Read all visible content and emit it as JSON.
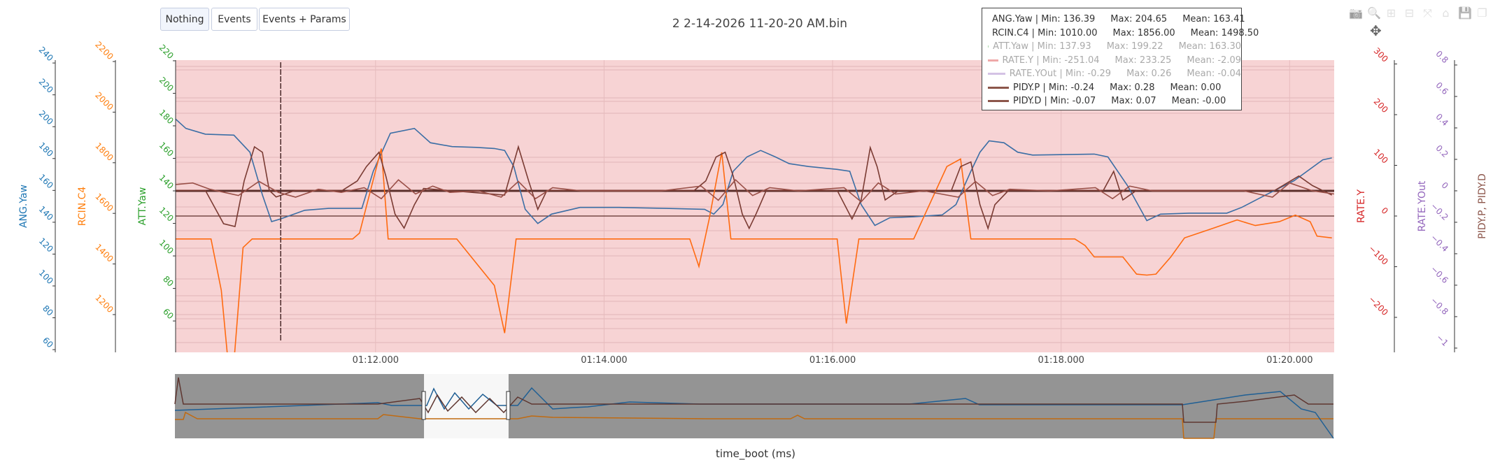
{
  "title": "2 2-14-2026 11-20-20 AM.bin",
  "buttons": [
    {
      "label": "Nothing",
      "active": true
    },
    {
      "label": "Events",
      "active": false
    },
    {
      "label": "Events + Params",
      "active": false
    }
  ],
  "modebar": {
    "icons": [
      "camera-icon",
      "zoom-icon",
      "zoom-in-icon",
      "zoom-out-icon",
      "autoscale-icon",
      "home-icon",
      "save-icon",
      "copy-icon"
    ],
    "glyphs": [
      "📷",
      "🔍",
      "⊞",
      "⊟",
      "⤧",
      "⌂",
      "💾",
      "❐"
    ],
    "pan_glyph": "✥"
  },
  "legend": [
    {
      "name": "ANG.Yaw | Min: 136.39",
      "max": "Max: 204.65",
      "mean": "Mean: 163.41",
      "color": "#1f77b4",
      "visible": true
    },
    {
      "name": "RCIN.C4 | Min: 1010.00",
      "max": "Max: 1856.00",
      "mean": "Mean: 1498.50",
      "color": "#ff7f0e",
      "visible": true
    },
    {
      "name": "ATT.Yaw | Min: 137.93",
      "max": "Max: 199.22",
      "mean": "Mean: 163.30",
      "color": "#2ca02c",
      "visible": false
    },
    {
      "name": "RATE.Y | Min: -251.04",
      "max": "Max: 233.25",
      "mean": "Mean: -2.09",
      "color": "#d62728",
      "visible": false
    },
    {
      "name": "RATE.YOut | Min: -0.29",
      "max": "Max: 0.26",
      "mean": "Mean: -0.04",
      "color": "#9467bd",
      "visible": false
    },
    {
      "name": "PIDY.P | Min: -0.24",
      "max": "Max: 0.28",
      "mean": "Mean: 0.00",
      "color": "#8c564b",
      "visible": true
    },
    {
      "name": "PIDY.D | Min: -0.07",
      "max": "Max: 0.07",
      "mean": "Mean: -0.00",
      "color": "#8c564b",
      "visible": true
    }
  ],
  "chart_data": {
    "type": "line",
    "title": "2 2-14-2026 11-20-20 AM.bin",
    "xlabel": "time_boot (ms)",
    "xlim": [
      70.25,
      80.39
    ],
    "xticks": [
      {
        "t": 72,
        "label": "01:12.000"
      },
      {
        "t": 74,
        "label": "01:14.000"
      },
      {
        "t": 76,
        "label": "01:16.000"
      },
      {
        "t": 78,
        "label": "01:18.000"
      },
      {
        "t": 80,
        "label": "01:20.000"
      }
    ],
    "axes": {
      "ang": {
        "title": "ANG.Yaw",
        "color": "#1f77b4",
        "side": "left",
        "range": [
          58.3,
          241.8
        ],
        "ticks": [
          60,
          80,
          100,
          120,
          140,
          160,
          180,
          200,
          220,
          240
        ],
        "tickColor": "#1f77b4"
      },
      "rcin": {
        "title": "RCIN.C4",
        "color": "#ff7f0e",
        "side": "left",
        "range": [
          1050.8,
          2205.5
        ],
        "ticks": [
          1200,
          1400,
          1600,
          1800,
          2000,
          2200
        ],
        "tickColor": "#ff7f0e"
      },
      "att": {
        "title": "ATT.Yaw",
        "color": "#2ca02c",
        "side": "left",
        "range": [
          40.7,
          220.4
        ],
        "ticks": [
          60,
          80,
          100,
          120,
          140,
          160,
          180,
          200,
          220
        ],
        "tickColor": "#2ca02c"
      },
      "ratey": {
        "title": "RATE.Y",
        "color": "#d62728",
        "side": "right",
        "range": [
          -269,
          307.6
        ],
        "ticks": [
          -200,
          -100,
          0,
          100,
          200,
          300
        ],
        "tickColor": "#d62728"
      },
      "yout": {
        "title": "RATE.YOut",
        "color": "#9467bd",
        "side": "right",
        "range": [
          -1.027,
          0.831
        ],
        "ticks": [
          -1,
          -0.8,
          -0.6,
          -0.4,
          -0.2,
          0,
          0.2,
          0.4,
          0.6,
          0.8
        ],
        "tickColor": "#9467bd"
      },
      "pidy": {
        "title": "PIDY.P, PIDY.D",
        "color": "#8c564b",
        "side": "right-title",
        "range": [
          -1.027,
          0.831
        ],
        "ticks": [],
        "tickColor": "#8c564b"
      }
    },
    "series": [
      {
        "name": "ANG.Yaw",
        "axis": "ang",
        "color": "#3b6ea5",
        "points": [
          [
            70.25,
            204.8
          ],
          [
            70.34,
            198.9
          ],
          [
            70.51,
            195.3
          ],
          [
            70.76,
            194.7
          ],
          [
            70.9,
            184
          ],
          [
            71.01,
            157.1
          ],
          [
            71.09,
            140.4
          ],
          [
            71.17,
            142.1
          ],
          [
            71.38,
            147.5
          ],
          [
            71.59,
            148.7
          ],
          [
            71.88,
            148.7
          ],
          [
            71.98,
            172
          ],
          [
            72.13,
            195.9
          ],
          [
            72.34,
            198.9
          ],
          [
            72.48,
            189.9
          ],
          [
            72.67,
            187.5
          ],
          [
            72.88,
            187
          ],
          [
            73.04,
            186.3
          ],
          [
            73.13,
            185.1
          ],
          [
            73.21,
            175
          ],
          [
            73.31,
            148.1
          ],
          [
            73.42,
            139.2
          ],
          [
            73.54,
            145.1
          ],
          [
            73.79,
            149.3
          ],
          [
            74.13,
            149.3
          ],
          [
            74.54,
            148.7
          ],
          [
            74.88,
            148.1
          ],
          [
            74.96,
            145.1
          ],
          [
            75.04,
            151.1
          ],
          [
            75.13,
            172
          ],
          [
            75.25,
            181
          ],
          [
            75.37,
            185.1
          ],
          [
            75.5,
            181
          ],
          [
            75.62,
            176.8
          ],
          [
            75.79,
            175
          ],
          [
            76.04,
            173.2
          ],
          [
            76.15,
            172
          ],
          [
            76.25,
            151.1
          ],
          [
            76.37,
            138
          ],
          [
            76.5,
            142.8
          ],
          [
            76.71,
            143.4
          ],
          [
            76.96,
            144.6
          ],
          [
            77.08,
            151.1
          ],
          [
            77.21,
            172
          ],
          [
            77.29,
            184
          ],
          [
            77.37,
            191.1
          ],
          [
            77.5,
            189.9
          ],
          [
            77.62,
            184
          ],
          [
            77.75,
            182.2
          ],
          [
            78.29,
            182.8
          ],
          [
            78.41,
            181
          ],
          [
            78.58,
            163.1
          ],
          [
            78.75,
            141
          ],
          [
            78.87,
            145.1
          ],
          [
            79.12,
            145.7
          ],
          [
            79.45,
            145.7
          ],
          [
            79.58,
            149.3
          ],
          [
            79.79,
            157.1
          ],
          [
            80.04,
            166.1
          ],
          [
            80.29,
            179.2
          ],
          [
            80.37,
            180.4
          ]
        ]
      },
      {
        "name": "RCIN.C4",
        "axis": "rcin",
        "color": "#ff6a10",
        "points": [
          [
            70.25,
            1499
          ],
          [
            70.56,
            1499
          ],
          [
            70.65,
            1296
          ],
          [
            70.71,
            1010
          ],
          [
            70.76,
            1010
          ],
          [
            70.84,
            1465
          ],
          [
            70.92,
            1499
          ],
          [
            71.8,
            1499
          ],
          [
            71.86,
            1522
          ],
          [
            72.05,
            1856
          ],
          [
            72.11,
            1499
          ],
          [
            72.34,
            1499
          ],
          [
            72.71,
            1499
          ],
          [
            73.04,
            1315
          ],
          [
            73.13,
            1127
          ],
          [
            73.23,
            1499
          ],
          [
            74.54,
            1499
          ],
          [
            74.75,
            1499
          ],
          [
            74.83,
            1390
          ],
          [
            74.92,
            1578
          ],
          [
            75.03,
            1841
          ],
          [
            75.11,
            1499
          ],
          [
            76.04,
            1499
          ],
          [
            76.12,
            1165
          ],
          [
            76.23,
            1499
          ],
          [
            76.71,
            1499
          ],
          [
            77.0,
            1785
          ],
          [
            77.12,
            1815
          ],
          [
            77.21,
            1499
          ],
          [
            78.12,
            1499
          ],
          [
            78.21,
            1473
          ],
          [
            78.29,
            1428
          ],
          [
            78.54,
            1428
          ],
          [
            78.66,
            1360
          ],
          [
            78.75,
            1356
          ],
          [
            78.83,
            1360
          ],
          [
            78.96,
            1428
          ],
          [
            79.08,
            1503
          ],
          [
            79.33,
            1541
          ],
          [
            79.54,
            1574
          ],
          [
            79.7,
            1552
          ],
          [
            79.91,
            1567
          ],
          [
            80.05,
            1593
          ],
          [
            80.18,
            1567
          ],
          [
            80.24,
            1510
          ],
          [
            80.37,
            1503
          ]
        ]
      },
      {
        "name": "PIDY.P",
        "axis": "pidy",
        "color": "#7a3b33",
        "points": [
          [
            70.25,
            0.003
          ],
          [
            70.51,
            0.003
          ],
          [
            70.67,
            -0.209
          ],
          [
            70.77,
            -0.227
          ],
          [
            70.85,
            0.063
          ],
          [
            70.94,
            0.28
          ],
          [
            71.01,
            0.245
          ],
          [
            71.07,
            0.003
          ],
          [
            71.13,
            -0.039
          ],
          [
            71.3,
            0.003
          ],
          [
            71.71,
            0.003
          ],
          [
            71.84,
            0.063
          ],
          [
            71.92,
            0.154
          ],
          [
            72.03,
            0.245
          ],
          [
            72.09,
            0.094
          ],
          [
            72.17,
            -0.148
          ],
          [
            72.25,
            -0.237
          ],
          [
            72.34,
            -0.088
          ],
          [
            72.42,
            0.015
          ],
          [
            72.63,
            0.003
          ],
          [
            73.13,
            -0.027
          ],
          [
            73.25,
            0.28
          ],
          [
            73.34,
            0.063
          ],
          [
            73.42,
            -0.118
          ],
          [
            73.5,
            0.003
          ],
          [
            73.71,
            0.003
          ],
          [
            74.79,
            0.003
          ],
          [
            74.89,
            0.063
          ],
          [
            74.98,
            0.215
          ],
          [
            75.06,
            0.245
          ],
          [
            75.13,
            0.094
          ],
          [
            75.21,
            -0.148
          ],
          [
            75.27,
            -0.239
          ],
          [
            75.33,
            -0.148
          ],
          [
            75.42,
            0.003
          ],
          [
            76.04,
            0.003
          ],
          [
            76.17,
            -0.179
          ],
          [
            76.25,
            -0.058
          ],
          [
            76.33,
            0.275
          ],
          [
            76.39,
            0.154
          ],
          [
            76.46,
            -0.058
          ],
          [
            76.58,
            0.003
          ],
          [
            77.04,
            0.003
          ],
          [
            77.12,
            0.154
          ],
          [
            77.21,
            0.184
          ],
          [
            77.29,
            -0.088
          ],
          [
            77.36,
            -0.239
          ],
          [
            77.42,
            -0.088
          ],
          [
            77.54,
            0.003
          ],
          [
            78.37,
            0.003
          ],
          [
            78.46,
            0.124
          ],
          [
            78.54,
            -0.058
          ],
          [
            78.66,
            0.003
          ],
          [
            79.87,
            0.003
          ],
          [
            80.08,
            0.094
          ],
          [
            80.2,
            0.033
          ],
          [
            80.37,
            -0.027
          ]
        ]
      },
      {
        "name": "PIDY.D",
        "axis": "pidy",
        "color": "#9a5048",
        "points": [
          [
            70.25,
            0.04
          ],
          [
            70.4,
            0.05
          ],
          [
            70.55,
            0.01
          ],
          [
            70.8,
            -0.03
          ],
          [
            70.98,
            0.06
          ],
          [
            71.15,
            -0.01
          ],
          [
            71.3,
            -0.04
          ],
          [
            71.5,
            0.01
          ],
          [
            71.7,
            -0.01
          ],
          [
            71.9,
            0.02
          ],
          [
            72.05,
            -0.05
          ],
          [
            72.2,
            0.07
          ],
          [
            72.35,
            -0.02
          ],
          [
            72.5,
            0.03
          ],
          [
            72.65,
            -0.01
          ],
          [
            72.9,
            0.0
          ],
          [
            73.1,
            -0.04
          ],
          [
            73.25,
            0.06
          ],
          [
            73.4,
            -0.05
          ],
          [
            73.55,
            0.02
          ],
          [
            73.8,
            0.0
          ],
          [
            74.5,
            0.0
          ],
          [
            74.85,
            0.03
          ],
          [
            75.0,
            -0.06
          ],
          [
            75.15,
            0.07
          ],
          [
            75.3,
            -0.03
          ],
          [
            75.45,
            0.02
          ],
          [
            75.7,
            0.0
          ],
          [
            76.1,
            0.02
          ],
          [
            76.25,
            -0.07
          ],
          [
            76.4,
            0.05
          ],
          [
            76.55,
            -0.02
          ],
          [
            76.8,
            0.0
          ],
          [
            77.1,
            -0.04
          ],
          [
            77.25,
            0.06
          ],
          [
            77.4,
            -0.03
          ],
          [
            77.55,
            0.01
          ],
          [
            77.9,
            0.0
          ],
          [
            78.3,
            0.02
          ],
          [
            78.45,
            -0.05
          ],
          [
            78.6,
            0.03
          ],
          [
            78.8,
            0.0
          ],
          [
            79.6,
            0.0
          ],
          [
            79.85,
            -0.04
          ],
          [
            80.0,
            0.05
          ],
          [
            80.2,
            0.0
          ],
          [
            80.39,
            -0.02
          ]
        ]
      }
    ],
    "cursor_time": 71.17,
    "background_color": "#f7d3d4",
    "rangeslider": {
      "window": [
        0.215,
        0.288
      ]
    }
  }
}
